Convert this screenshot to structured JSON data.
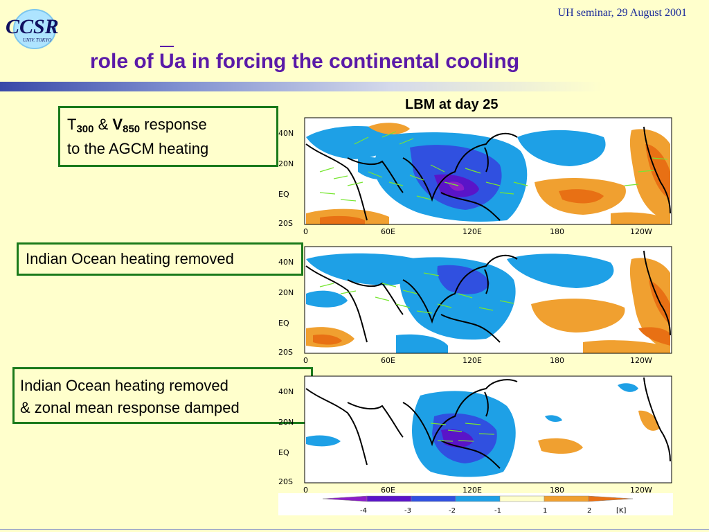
{
  "logo": {
    "text": "CCSR",
    "subtext": "UNIV. TOKYO"
  },
  "header_note": "UH seminar, 29 August 2001",
  "title": {
    "pre": "role of ",
    "bar": "U",
    "post": "a in forcing the continental cooling"
  },
  "lbm_caption": "LBM at day 25",
  "box1": {
    "t": "T",
    "t_sub": "300",
    "amp": "&",
    "v": "V",
    "v_sub": "850",
    "rest": "response",
    "line2": "to the AGCM heating"
  },
  "box2": {
    "text": "Indian Ocean heating removed"
  },
  "box3": {
    "line1": "Indian Ocean heating removed",
    "line2": "& zonal mean response damped"
  },
  "map_axes": {
    "lat_labels": [
      "40N",
      "20N",
      "EQ",
      "20S"
    ],
    "lon_labels": [
      "0",
      "60E",
      "120E",
      "180",
      "120W"
    ]
  },
  "colorbar": {
    "labels": [
      "-4",
      "-3",
      "-2",
      "-1",
      "1",
      "2",
      "[K]"
    ],
    "colors": [
      "#8c1ec8",
      "#5a14c8",
      "#3050e0",
      "#1ea0e6",
      "#ffffcc",
      "#f0a030",
      "#e87014"
    ]
  },
  "colors": {
    "land_outline": "#000000",
    "vector": "#78e632",
    "cool_light": "#1ea0e6",
    "cool_mid": "#3050e0",
    "cool_dark": "#5a14c8",
    "cool_extreme": "#8c1ec8",
    "warm_light": "#f0a030",
    "warm_dark": "#e87014"
  }
}
